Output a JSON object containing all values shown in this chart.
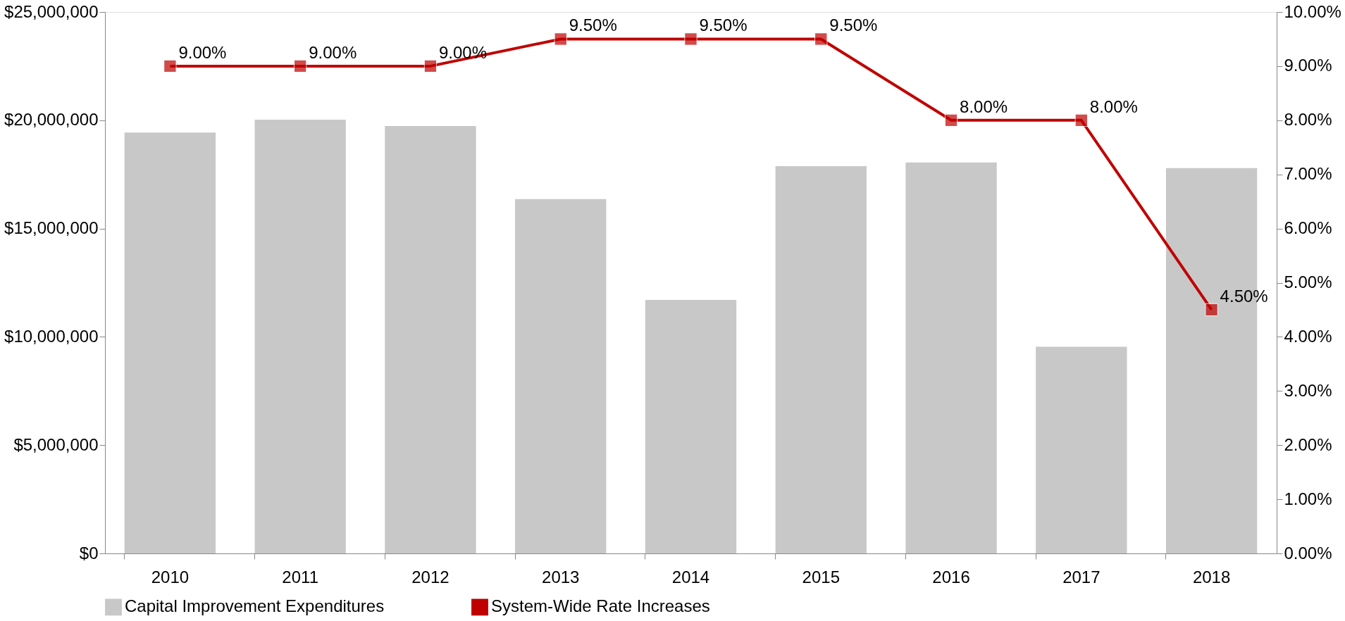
{
  "chart_data": {
    "type": "bar",
    "categories": [
      "2010",
      "2011",
      "2012",
      "2013",
      "2014",
      "2015",
      "2016",
      "2017",
      "2018"
    ],
    "series": [
      {
        "name": "Capital Improvement Expenditures",
        "color": "#c8c8c8",
        "values": [
          19430000,
          20030000,
          19730000,
          16360000,
          11700000,
          17880000,
          18050000,
          9540000,
          17790000
        ]
      },
      {
        "name": "System-Wide Rate Increases",
        "type": "line",
        "axis": "y2",
        "color": "#c00000",
        "marker": "square",
        "values": [
          9.0,
          9.0,
          9.0,
          9.5,
          9.5,
          9.5,
          8.0,
          8.0,
          4.5
        ],
        "value_labels": [
          "9.00%",
          "9.00%",
          "9.00%",
          "9.50%",
          "9.50%",
          "9.50%",
          "8.00%",
          "8.00%",
          "4.50%"
        ]
      }
    ],
    "ylim": [
      0,
      25000000
    ],
    "yticks": [
      {
        "value": 0,
        "label": "$0"
      },
      {
        "value": 5000000,
        "label": "$5,000,000"
      },
      {
        "value": 10000000,
        "label": "$10,000,000"
      },
      {
        "value": 15000000,
        "label": "$15,000,000"
      },
      {
        "value": 20000000,
        "label": "$20,000,000"
      },
      {
        "value": 25000000,
        "label": "$25,000,000"
      }
    ],
    "y2lim": [
      0,
      10
    ],
    "y2ticks": [
      {
        "value": 0,
        "label": "0.00%"
      },
      {
        "value": 1,
        "label": "1.00%"
      },
      {
        "value": 2,
        "label": "2.00%"
      },
      {
        "value": 3,
        "label": "3.00%"
      },
      {
        "value": 4,
        "label": "4.00%"
      },
      {
        "value": 5,
        "label": "5.00%"
      },
      {
        "value": 6,
        "label": "6.00%"
      },
      {
        "value": 7,
        "label": "7.00%"
      },
      {
        "value": 8,
        "label": "8.00%"
      },
      {
        "value": 9,
        "label": "9.00%"
      },
      {
        "value": 10,
        "label": "10.00%"
      }
    ],
    "legend": "bottom",
    "grid": false
  }
}
